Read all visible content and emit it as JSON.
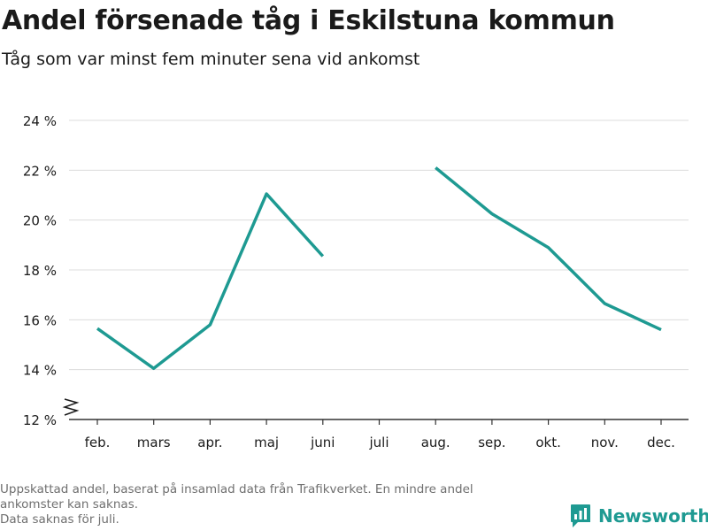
{
  "title": "Andel försenade tåg i Eskilstuna kommun",
  "subtitle": "Tåg som var minst fem minuter sena vid ankomst",
  "footnote": {
    "line1": "Uppskattad andel, baserat på insamlad data från Trafikverket. En mindre andel",
    "line2": "ankomster kan saknas.",
    "line3": "Data saknas för juli."
  },
  "brand": {
    "name": "Newsworthy",
    "icon": "newsworthy-logo-icon",
    "color": "#1e9a92"
  },
  "chart_data": {
    "type": "line",
    "title": "Andel försenade tåg i Eskilstuna kommun",
    "subtitle": "Tåg som var minst fem minuter sena vid ankomst",
    "categories": [
      "feb.",
      "mars",
      "apr.",
      "maj",
      "juni",
      "juli",
      "aug.",
      "sep.",
      "okt.",
      "nov.",
      "dec."
    ],
    "series": [
      {
        "values": [
          15.65,
          14.05,
          15.8,
          21.05,
          18.55,
          null,
          22.1,
          20.25,
          18.9,
          16.65,
          15.6
        ],
        "color": "#1e9a92"
      }
    ],
    "yticks": [
      12,
      14,
      16,
      18,
      20,
      22,
      24
    ],
    "ytick_labels": [
      "12 %",
      "14 %",
      "16 %",
      "18 %",
      "20 %",
      "22 %",
      "24 %"
    ],
    "ylim": [
      12,
      24
    ],
    "axis_break": true,
    "grid": true,
    "xlabel": "",
    "ylabel": ""
  }
}
